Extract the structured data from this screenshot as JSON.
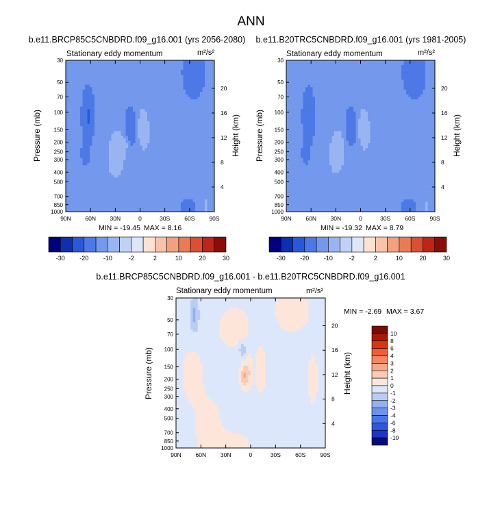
{
  "figure": {
    "title": "ANN"
  },
  "palettes": {
    "main": [
      "#00007e",
      "#0e2fb0",
      "#2a58d8",
      "#4d79e6",
      "#7398ec",
      "#99b5f1",
      "#c0d1f6",
      "#dde7fa",
      "#fce2d2",
      "#f8c4a9",
      "#f2a17f",
      "#ea7b57",
      "#db4f33",
      "#bf2418",
      "#8a0d07"
    ],
    "diff": [
      "#0a0a78",
      "#1a36c4",
      "#2f57de",
      "#4a75e7",
      "#6c92ec",
      "#93b0f1",
      "#b8ccf5",
      "#dce7fb",
      "#fde6d9",
      "#fbcbb5",
      "#f7aa8a",
      "#f48762",
      "#ee5d36",
      "#dc3410",
      "#a81a00",
      "#7a0b00"
    ]
  },
  "chart_data": [
    {
      "type": "heatmap",
      "title": "b.e11.BRCP85C5CNBDRD.f09_g16.001 (yrs 2056-2080)",
      "subtitle": "Stationary eddy momentum",
      "units": "m²/s²",
      "xlabel": "",
      "ylabel": "Pressure (mb)",
      "y2label": "Height (km)",
      "xticks": [
        "90N",
        "60N",
        "30N",
        "0",
        "30S",
        "60S",
        "90S"
      ],
      "yticks": [
        30,
        50,
        70,
        100,
        150,
        200,
        250,
        300,
        400,
        500,
        700,
        850,
        1000
      ],
      "y2ticks": [
        20,
        16,
        12,
        8,
        4
      ],
      "min_label": "MIN = -19.45",
      "max_label": "MAX =   8.16",
      "levels": [
        -30,
        -20,
        -10,
        -2,
        2,
        10,
        20,
        30
      ],
      "blobs": [
        {
          "lat": 63,
          "p": 110,
          "slat": 4,
          "sp": 0.35,
          "a": -10
        },
        {
          "lat": 66,
          "p": 260,
          "slat": 3,
          "sp": 0.15,
          "a": -6
        },
        {
          "lat": 27,
          "p": 260,
          "slat": 8,
          "sp": 0.45,
          "a": 5
        },
        {
          "lat": 28,
          "p": 220,
          "slat": 4,
          "sp": 0.18,
          "a": 4
        },
        {
          "lat": 16,
          "p": 200,
          "slat": 3,
          "sp": 0.15,
          "a": 3
        },
        {
          "lat": 12,
          "p": 140,
          "slat": 4,
          "sp": 0.25,
          "a": -9
        },
        {
          "lat": -3,
          "p": 140,
          "slat": 4,
          "sp": 0.3,
          "a": 6
        },
        {
          "lat": -8,
          "p": 170,
          "slat": 6,
          "sp": 0.4,
          "a": 3
        },
        {
          "lat": -65,
          "p": 40,
          "slat": 7,
          "sp": 0.3,
          "a": -8
        },
        {
          "lat": 20,
          "p": 50,
          "slat": 14,
          "sp": 0.4,
          "a": 1.8
        },
        {
          "lat": 44,
          "p": 500,
          "slat": 10,
          "sp": 0.6,
          "a": 2
        },
        {
          "lat": -58,
          "p": 900,
          "slat": 6,
          "sp": 0.12,
          "a": -4
        },
        {
          "lat": -80,
          "p": 900,
          "slat": 2,
          "sp": 0.15,
          "a": 5
        },
        {
          "lat": -20,
          "p": 350,
          "slat": 3,
          "sp": 0.5,
          "a": 1.8
        }
      ],
      "base": -1
    },
    {
      "type": "heatmap",
      "title": "b.e11.B20TRC5CNBDRD.f09_g16.001 (yrs 1981-2005)",
      "subtitle": "Stationary eddy momentum",
      "units": "m²/s²",
      "xlabel": "",
      "ylabel": "Pressure (mb)",
      "y2label": "Height (km)",
      "xticks": [
        "90N",
        "60N",
        "30N",
        "0",
        "30S",
        "60S",
        "90S"
      ],
      "yticks": [
        30,
        50,
        70,
        100,
        150,
        200,
        250,
        300,
        400,
        500,
        700,
        850,
        1000
      ],
      "y2ticks": [
        20,
        16,
        12,
        8,
        4
      ],
      "min_label": "MIN = -19.32",
      "max_label": "MAX =   8.79",
      "levels": [
        -30,
        -20,
        -10,
        -2,
        2,
        10,
        20,
        30
      ],
      "blobs": [
        {
          "lat": 63,
          "p": 110,
          "slat": 4,
          "sp": 0.35,
          "a": -9
        },
        {
          "lat": 66,
          "p": 260,
          "slat": 3,
          "sp": 0.15,
          "a": -5
        },
        {
          "lat": 27,
          "p": 250,
          "slat": 8,
          "sp": 0.45,
          "a": 4.5
        },
        {
          "lat": 28,
          "p": 220,
          "slat": 4,
          "sp": 0.18,
          "a": 3
        },
        {
          "lat": 12,
          "p": 140,
          "slat": 4,
          "sp": 0.25,
          "a": -9
        },
        {
          "lat": -3,
          "p": 140,
          "slat": 4,
          "sp": 0.3,
          "a": 6
        },
        {
          "lat": -8,
          "p": 170,
          "slat": 6,
          "sp": 0.4,
          "a": 3
        },
        {
          "lat": -65,
          "p": 40,
          "slat": 7,
          "sp": 0.3,
          "a": -9
        },
        {
          "lat": 20,
          "p": 50,
          "slat": 14,
          "sp": 0.4,
          "a": 1.8
        },
        {
          "lat": 44,
          "p": 500,
          "slat": 10,
          "sp": 0.6,
          "a": 2
        },
        {
          "lat": -58,
          "p": 900,
          "slat": 6,
          "sp": 0.12,
          "a": -4
        },
        {
          "lat": -80,
          "p": 900,
          "slat": 2,
          "sp": 0.15,
          "a": 4
        },
        {
          "lat": -20,
          "p": 350,
          "slat": 3,
          "sp": 0.5,
          "a": 1.8
        }
      ],
      "base": -1
    },
    {
      "type": "heatmap",
      "title": "b.e11.BRCP85C5CNBDRD.f09_g16.001 - b.e11.B20TRC5CNBDRD.f09_g16.001",
      "subtitle": "Stationary eddy momentum",
      "units": "m²/s²",
      "xlabel": "",
      "ylabel": "Pressure (mb)",
      "y2label": "Height (km)",
      "xticks": [
        "90N",
        "60N",
        "30N",
        "0",
        "30S",
        "60S",
        "90S"
      ],
      "yticks": [
        30,
        50,
        70,
        100,
        150,
        200,
        250,
        300,
        400,
        500,
        700,
        850,
        1000
      ],
      "y2ticks": [
        20,
        16,
        12,
        8,
        4
      ],
      "min_label": "MIN =  -2.69",
      "max_label": "MAX =   3.67",
      "levels": [
        -10,
        -8,
        -6,
        -4,
        -3,
        -2,
        -1,
        0,
        1,
        2,
        3,
        4,
        6,
        8,
        10
      ],
      "blobs": [
        {
          "lat": 68,
          "p": 45,
          "slat": 4,
          "sp": 0.3,
          "a": -2
        },
        {
          "lat": 20,
          "p": 60,
          "slat": 14,
          "sp": 0.35,
          "a": 0.7
        },
        {
          "lat": 70,
          "p": 180,
          "slat": 10,
          "sp": 0.5,
          "a": 0.6
        },
        {
          "lat": 10,
          "p": 100,
          "slat": 3,
          "sp": 0.12,
          "a": -1.6
        },
        {
          "lat": 8,
          "p": 185,
          "slat": 3,
          "sp": 0.18,
          "a": 2.2
        },
        {
          "lat": 2,
          "p": 170,
          "slat": 3,
          "sp": 0.25,
          "a": 1.2
        },
        {
          "lat": -12,
          "p": 160,
          "slat": 4,
          "sp": 0.35,
          "a": 1
        },
        {
          "lat": -50,
          "p": 40,
          "slat": 15,
          "sp": 0.35,
          "a": 0.8
        },
        {
          "lat": -75,
          "p": 200,
          "slat": 5,
          "sp": 0.5,
          "a": 0.6
        },
        {
          "lat": 50,
          "p": 600,
          "slat": 12,
          "sp": 0.5,
          "a": 0.6
        },
        {
          "lat": 25,
          "p": 900,
          "slat": 20,
          "sp": 0.2,
          "a": 0.6
        }
      ],
      "base": -0.3
    }
  ]
}
